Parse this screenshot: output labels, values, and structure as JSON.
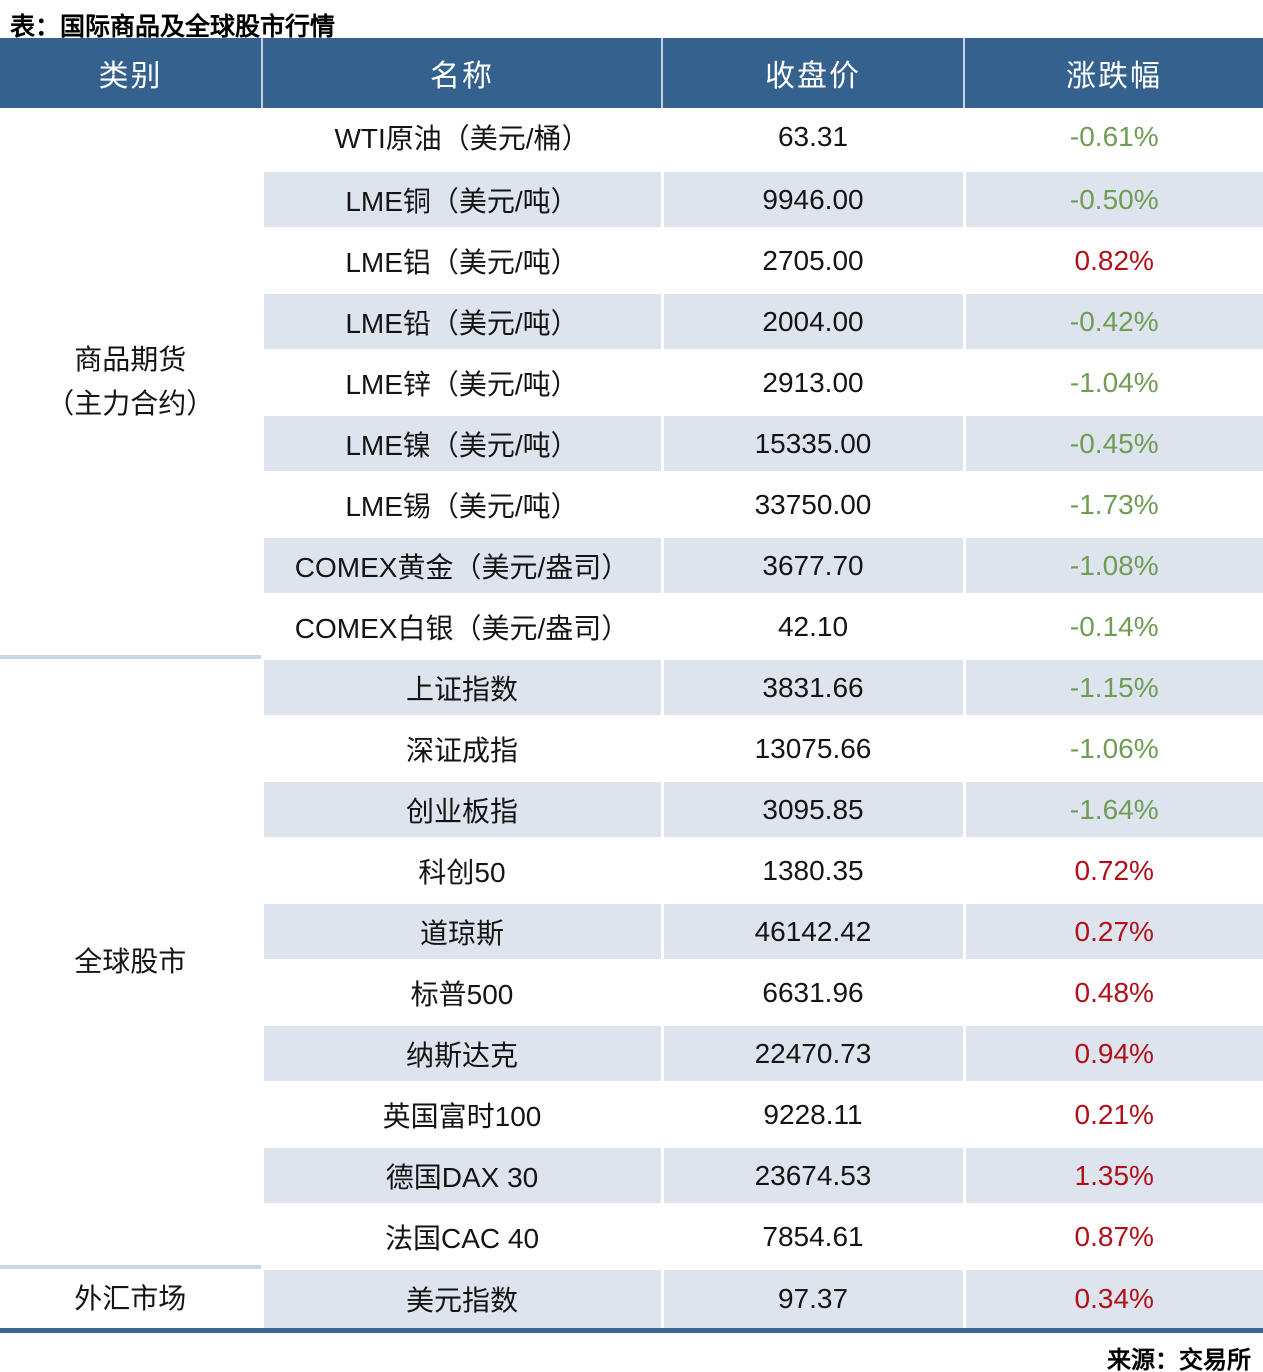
{
  "colors": {
    "header_bg": "#35618e",
    "stripe_bg": "#dde4ee",
    "up_red": "#b01118",
    "down_green": "#6f9d54",
    "bottom_border_navy": "#3c6693"
  },
  "chart_data": {
    "type": "table",
    "title": "表：国际商品及全球股市行情",
    "source": "来源：交易所",
    "columns": [
      "类别",
      "名称",
      "收盘价",
      "涨跌幅"
    ],
    "layout": {
      "striped_rows": true,
      "change_color_convention": "red=up, green=down"
    },
    "sections": [
      {
        "category_lines": [
          "商品期货",
          "（主力合约）"
        ],
        "rows": [
          {
            "name": "WTI原油（美元/桶）",
            "close": "63.31",
            "change": "-0.61%"
          },
          {
            "name": "LME铜（美元/吨）",
            "close": "9946.00",
            "change": "-0.50%"
          },
          {
            "name": "LME铝（美元/吨）",
            "close": "2705.00",
            "change": "0.82%"
          },
          {
            "name": "LME铅（美元/吨）",
            "close": "2004.00",
            "change": "-0.42%"
          },
          {
            "name": "LME锌（美元/吨）",
            "close": "2913.00",
            "change": "-1.04%"
          },
          {
            "name": "LME镍（美元/吨）",
            "close": "15335.00",
            "change": "-0.45%"
          },
          {
            "name": "LME锡（美元/吨）",
            "close": "33750.00",
            "change": "-1.73%"
          },
          {
            "name": "COMEX黄金（美元/盎司）",
            "close": "3677.70",
            "change": "-1.08%"
          },
          {
            "name": "COMEX白银（美元/盎司）",
            "close": "42.10",
            "change": "-0.14%"
          }
        ]
      },
      {
        "category_lines": [
          "全球股市"
        ],
        "rows": [
          {
            "name": "上证指数",
            "close": "3831.66",
            "change": "-1.15%"
          },
          {
            "name": "深证成指",
            "close": "13075.66",
            "change": "-1.06%"
          },
          {
            "name": "创业板指",
            "close": "3095.85",
            "change": "-1.64%"
          },
          {
            "name": "科创50",
            "close": "1380.35",
            "change": "0.72%"
          },
          {
            "name": "道琼斯",
            "close": "46142.42",
            "change": "0.27%"
          },
          {
            "name": "标普500",
            "close": "6631.96",
            "change": "0.48%"
          },
          {
            "name": "纳斯达克",
            "close": "22470.73",
            "change": "0.94%"
          },
          {
            "name": "英国富时100",
            "close": "9228.11",
            "change": "0.21%"
          },
          {
            "name": "德国DAX 30",
            "close": "23674.53",
            "change": "1.35%"
          },
          {
            "name": "法国CAC 40",
            "close": "7854.61",
            "change": "0.87%"
          }
        ]
      },
      {
        "category_lines": [
          "外汇市场"
        ],
        "rows": [
          {
            "name": "美元指数",
            "close": "97.37",
            "change": "0.34%"
          }
        ]
      }
    ]
  }
}
